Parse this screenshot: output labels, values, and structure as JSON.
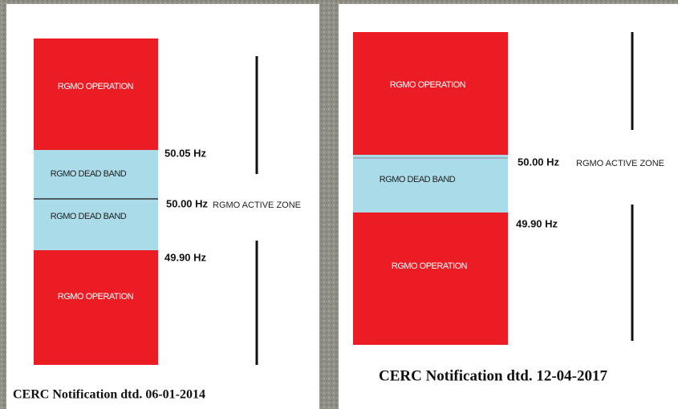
{
  "panels": [
    {
      "blocks": [
        "RGMO OPERATION",
        "RGMO DEAD BAND",
        "RGMO DEAD BAND",
        "RGMO OPERATION"
      ],
      "frequencies": [
        "50.05 Hz",
        "50.00 Hz",
        "49.90 Hz"
      ],
      "zone_label": "RGMO ACTIVE ZONE",
      "caption": "CERC Notification dtd. 06-01-2014"
    },
    {
      "blocks": [
        "RGMO OPERATION",
        "RGMO DEAD BAND",
        "RGMO OPERATION"
      ],
      "frequencies": [
        "50.00 Hz",
        "49.90 Hz"
      ],
      "zone_label": "RGMO ACTIVE ZONE",
      "caption": "CERC Notification dtd. 12-04-2017"
    }
  ]
}
